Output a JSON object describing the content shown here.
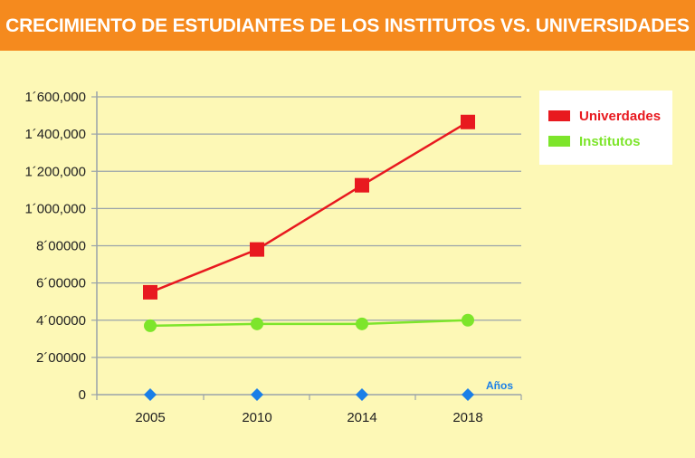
{
  "title": "CRECIMIENTO DE ESTUDIANTES DE LOS INSTITUTOS VS. UNIVERSIDADES",
  "colors": {
    "header": "#f58a1e",
    "background": "#fdf8b6",
    "grid": "#9aa3aa",
    "universidades": "#e8191f",
    "institutos": "#7de52b",
    "markers_axis": "#1a7fe8"
  },
  "chart_data": {
    "type": "line",
    "categories": [
      "2005",
      "2010",
      "2014",
      "2018"
    ],
    "x_axis_label": "Años",
    "y_tick_labels": [
      "0",
      "2´00000",
      "4´00000",
      "6´00000",
      "8´00000",
      "1´000,000",
      "1´200,000",
      "1´400,000",
      "1´600,000"
    ],
    "y_tick_values": [
      0,
      200000,
      400000,
      600000,
      800000,
      1000000,
      1200000,
      1400000,
      1600000
    ],
    "ylim": [
      0,
      1600000
    ],
    "grid": true,
    "legend_position": "top-right",
    "series": [
      {
        "name": "Univerdades",
        "values": [
          550000,
          780000,
          1125000,
          1465000
        ],
        "marker": "square",
        "color": "#e8191f"
      },
      {
        "name": "Institutos",
        "values": [
          370000,
          380000,
          380000,
          400000
        ],
        "marker": "circle",
        "color": "#7de52b"
      },
      {
        "values": [
          0,
          0,
          0,
          0
        ],
        "marker": "diamond",
        "color": "#1a7fe8"
      }
    ]
  }
}
